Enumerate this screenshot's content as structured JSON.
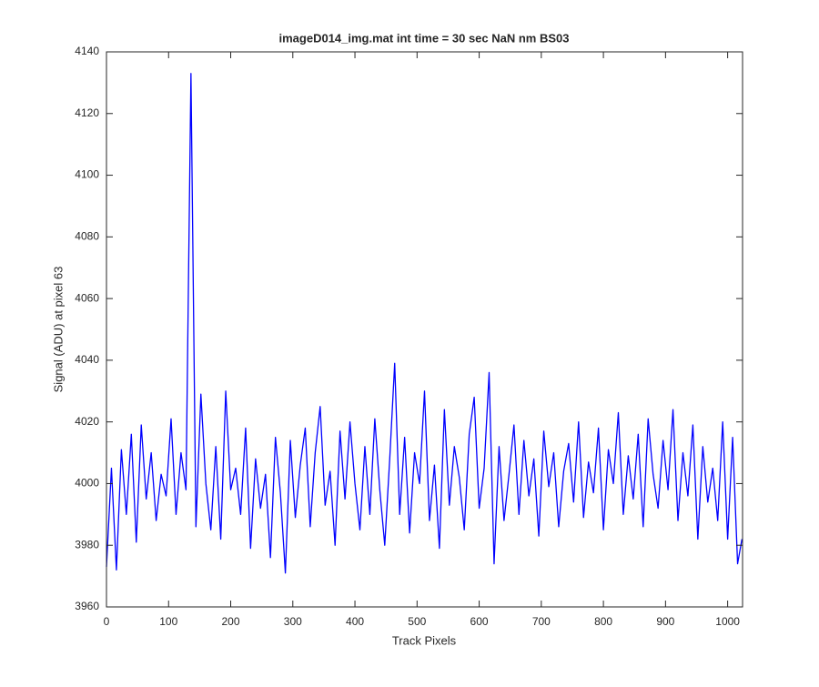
{
  "chart_data": {
    "type": "line",
    "title": "imageD014_img.mat int time = 30 sec  NaN nm BS03",
    "xlabel": "Track Pixels",
    "ylabel": "Signal (ADU) at pixel 63",
    "xlim": [
      0,
      1024
    ],
    "ylim": [
      3960,
      4140
    ],
    "xticks": [
      0,
      100,
      200,
      300,
      400,
      500,
      600,
      700,
      800,
      900,
      1000
    ],
    "yticks": [
      3960,
      3980,
      4000,
      4020,
      4040,
      4060,
      4080,
      4100,
      4120,
      4140
    ],
    "grid": false,
    "x": [
      0,
      8,
      16,
      24,
      32,
      40,
      48,
      56,
      64,
      72,
      80,
      88,
      96,
      104,
      112,
      120,
      128,
      136,
      144,
      152,
      160,
      168,
      176,
      184,
      192,
      200,
      208,
      216,
      224,
      232,
      240,
      248,
      256,
      264,
      272,
      280,
      288,
      296,
      304,
      312,
      320,
      328,
      336,
      344,
      352,
      360,
      368,
      376,
      384,
      392,
      400,
      408,
      416,
      424,
      432,
      440,
      448,
      456,
      464,
      472,
      480,
      488,
      496,
      504,
      512,
      520,
      528,
      536,
      544,
      552,
      560,
      568,
      576,
      584,
      592,
      600,
      608,
      616,
      624,
      632,
      640,
      648,
      656,
      664,
      672,
      680,
      688,
      696,
      704,
      712,
      720,
      728,
      736,
      744,
      752,
      760,
      768,
      776,
      784,
      792,
      800,
      808,
      816,
      824,
      832,
      840,
      848,
      856,
      864,
      872,
      880,
      888,
      896,
      904,
      912,
      920,
      928,
      936,
      944,
      952,
      960,
      968,
      976,
      984,
      992,
      1000,
      1008,
      1016,
      1023
    ],
    "series": [
      {
        "name": "signal",
        "color": "#0000ff",
        "values": [
          3973,
          4005,
          3972,
          4011,
          3990,
          4016,
          3981,
          4019,
          3995,
          4010,
          3988,
          4003,
          3996,
          4021,
          3990,
          4010,
          3998,
          4133,
          3986,
          4029,
          4000,
          3985,
          4012,
          3982,
          4030,
          3998,
          4005,
          3990,
          4018,
          3979,
          4008,
          3992,
          4003,
          3976,
          4015,
          3997,
          3971,
          4014,
          3989,
          4006,
          4018,
          3986,
          4010,
          4025,
          3993,
          4004,
          3980,
          4017,
          3995,
          4020,
          4000,
          3985,
          4012,
          3990,
          4021,
          3998,
          3980,
          4008,
          4039,
          3990,
          4015,
          3984,
          4010,
          4000,
          4030,
          3988,
          4006,
          3979,
          4024,
          3993,
          4012,
          4002,
          3985,
          4016,
          4028,
          3992,
          4005,
          4036,
          3974,
          4012,
          3988,
          4003,
          4019,
          3990,
          4014,
          3996,
          4008,
          3983,
          4017,
          3999,
          4010,
          3986,
          4004,
          4013,
          3994,
          4020,
          3989,
          4007,
          3997,
          4018,
          3985,
          4011,
          4000,
          4023,
          3990,
          4009,
          3995,
          4016,
          3986,
          4021,
          4003,
          3992,
          4014,
          3998,
          4024,
          3988,
          4010,
          3996,
          4019,
          3982,
          4012,
          3994,
          4005,
          3988,
          4020,
          3982,
          4015,
          3974,
          3982
        ]
      }
    ]
  }
}
